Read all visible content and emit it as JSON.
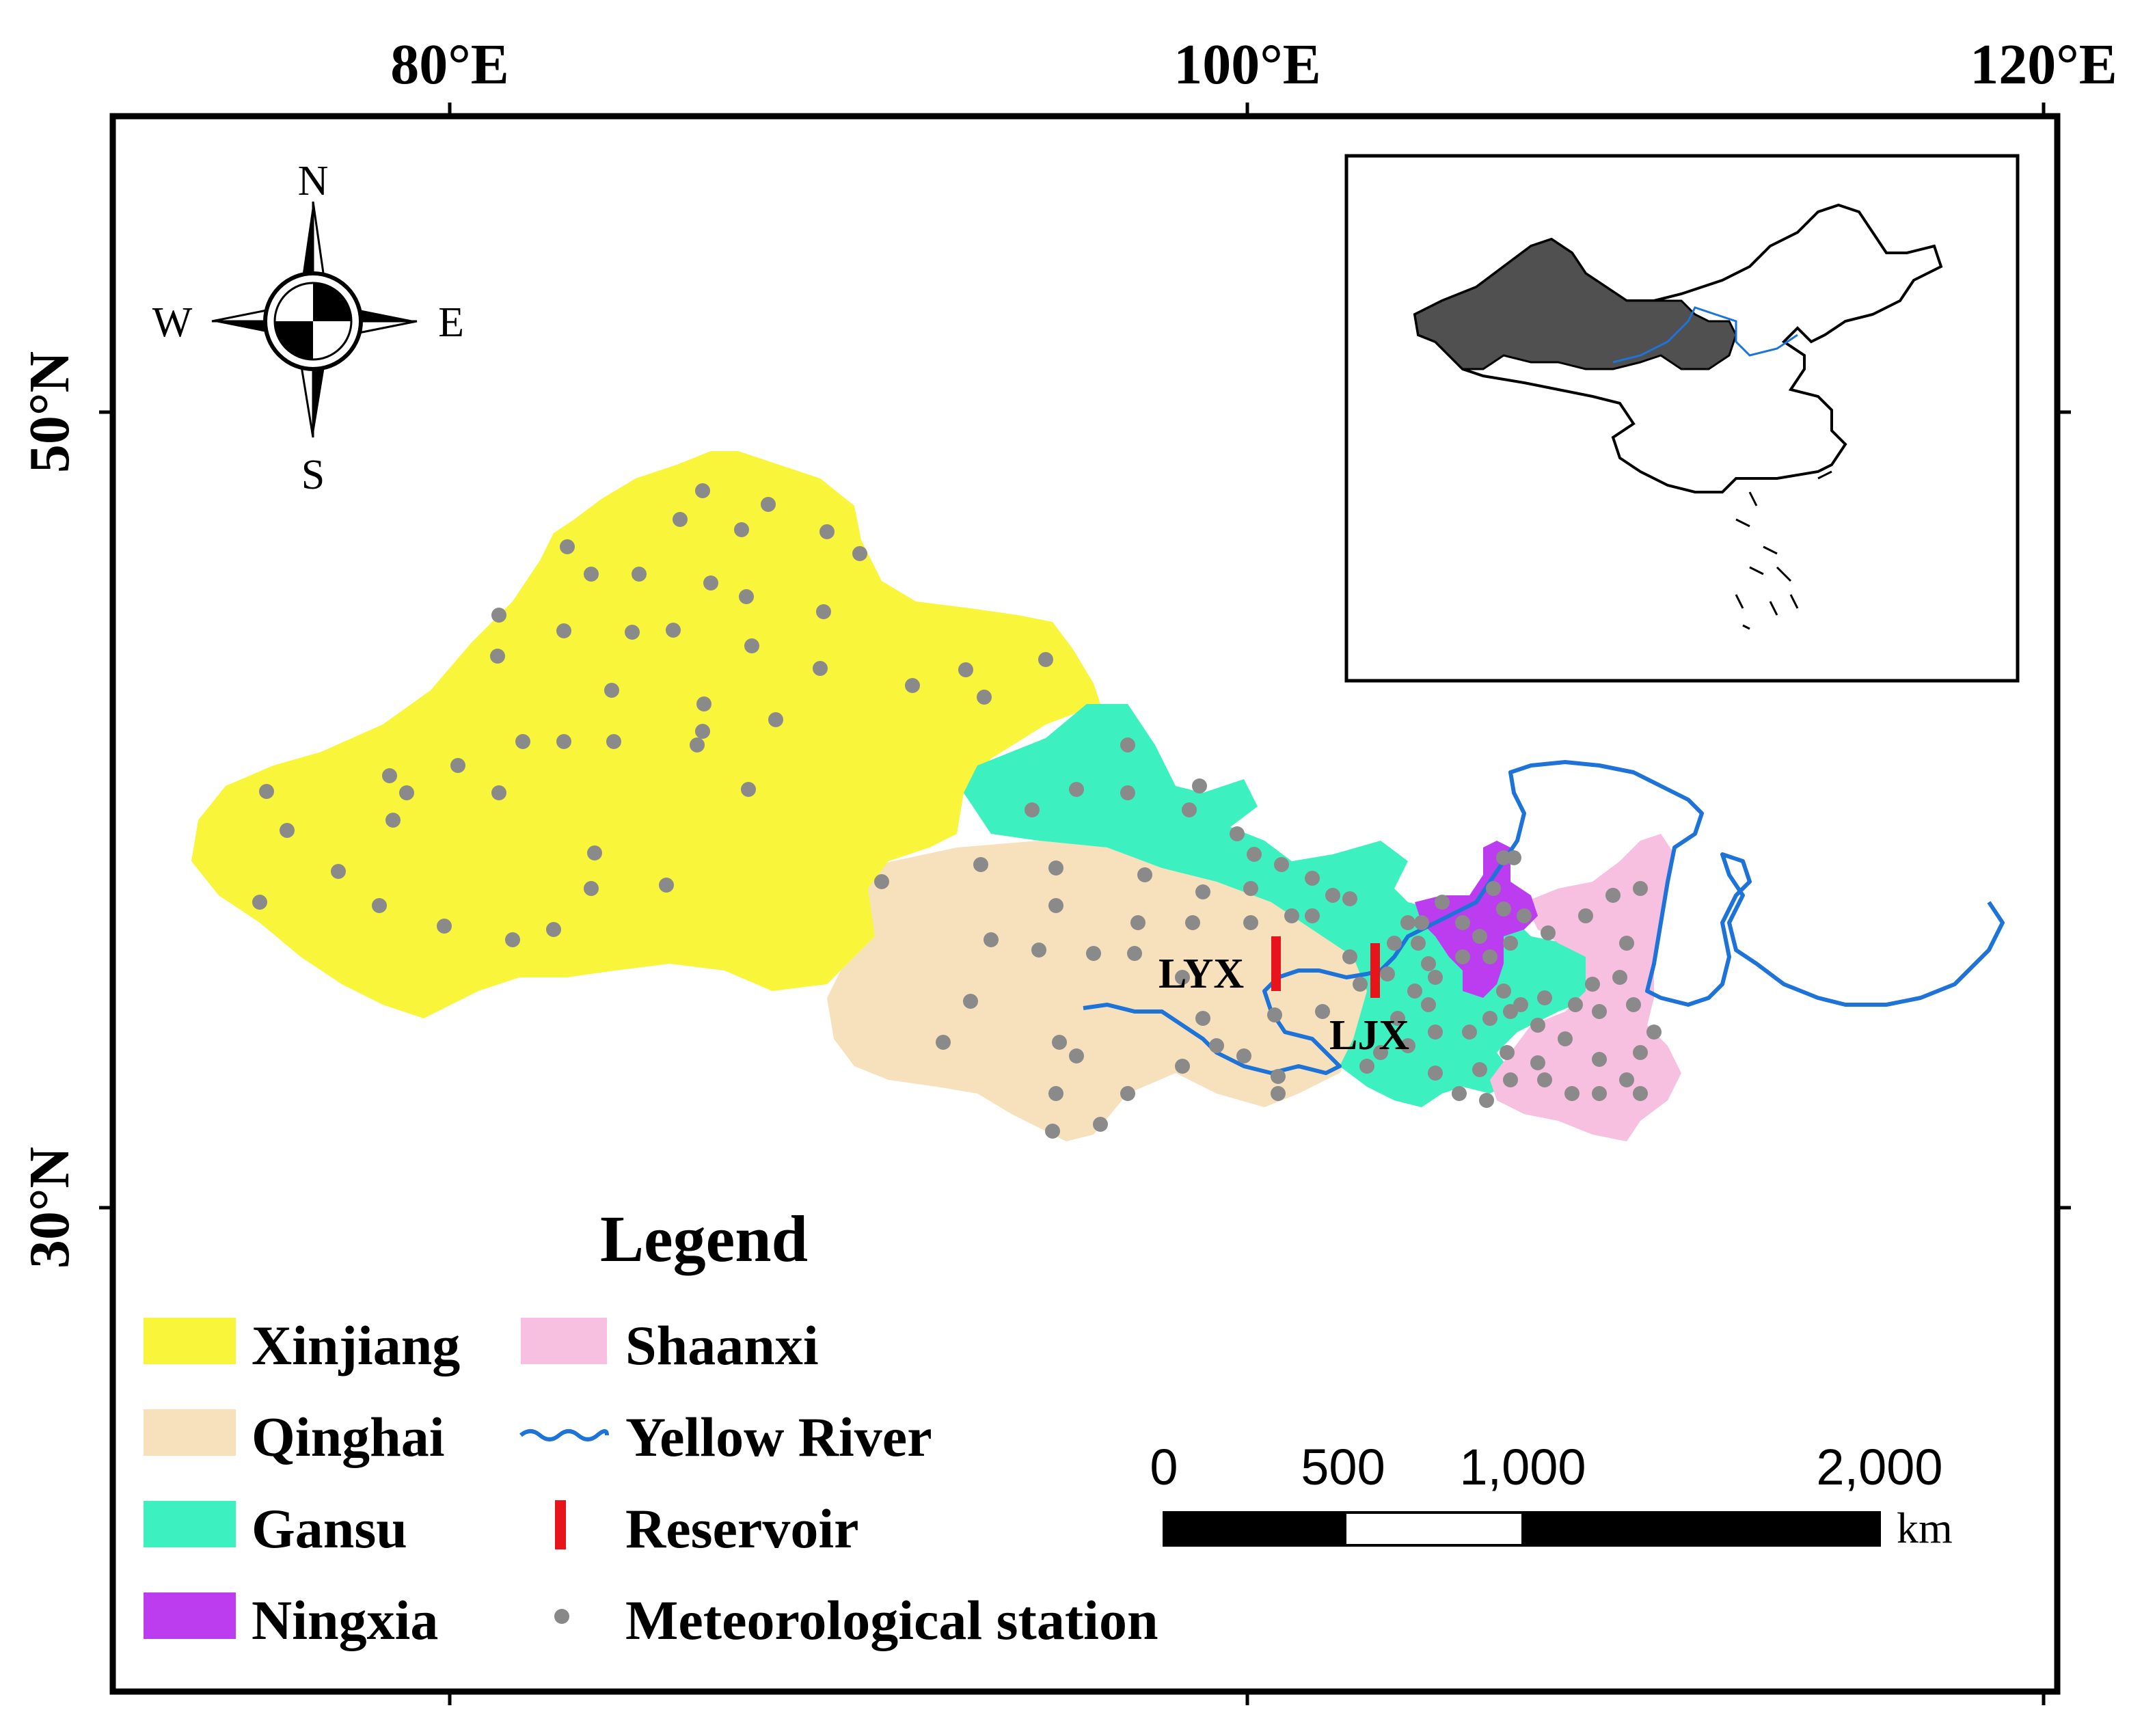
{
  "axes": {
    "top_longitudes": [
      "80°E",
      "100°E",
      "120°E"
    ],
    "left_latitudes": [
      "50°N",
      "30°N"
    ]
  },
  "compass": {
    "n": "N",
    "s": "S",
    "e": "E",
    "w": "W"
  },
  "reservoirs": [
    {
      "name": "LYX",
      "color": "#e8141c"
    },
    {
      "name": "LJX",
      "color": "#e8141c"
    }
  ],
  "legend": {
    "title": "Legend",
    "items": [
      {
        "label": "Xinjiang",
        "color": "#f8f53a",
        "symbol": "fill"
      },
      {
        "label": "Shaanxi",
        "color": "#f7bfe0",
        "symbol": "fill"
      },
      {
        "label": "Qinghai",
        "color": "#f6e1bc",
        "symbol": "fill"
      },
      {
        "label": "Yellow River",
        "color": "#1e73d8",
        "symbol": "line"
      },
      {
        "label": "Gansu",
        "color": "#3df0bf",
        "symbol": "fill"
      },
      {
        "label": "Reservoir",
        "color": "#e8141c",
        "symbol": "bar"
      },
      {
        "label": "Ningxia",
        "color": "#bc3cf0",
        "symbol": "fill"
      },
      {
        "label": "Meteorological station",
        "color": "#888888",
        "symbol": "dot"
      }
    ]
  },
  "scale_bar": {
    "labels": [
      "0",
      "500",
      "1,000",
      "2,000"
    ],
    "unit": "km"
  },
  "inset": {
    "highlight_color": "#505050",
    "river_color": "#1e73d8"
  },
  "station_color": "#8a8a8a"
}
